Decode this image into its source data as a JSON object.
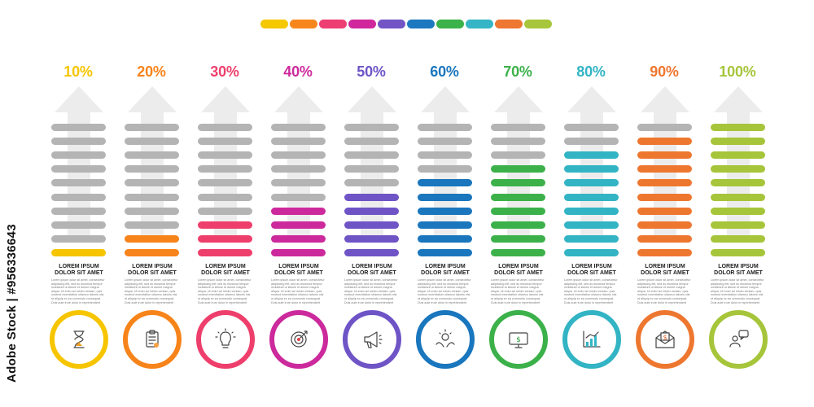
{
  "strip_colors": [
    "#f5c800",
    "#f7861d",
    "#ee3f72",
    "#d0279c",
    "#7254c5",
    "#1c78bf",
    "#3bb24a",
    "#35b5c5",
    "#ee7732",
    "#a8c63c"
  ],
  "columns": [
    {
      "percent": "10%",
      "fraction": 0.1,
      "color": "#f6c500",
      "icon": "hourglass-icon",
      "title": "LOREM IPSUM\nDOLOR SIT AMET",
      "text": "Lorem ipsum dolor sit amet, consectetur adipiscing elit, sed do eiusmod tempor incididunt ut labore et dolore magna aliqua. Ut enim ad minim veniam, quis nostrud exercitation ullamco laboris nisi ut aliquip ex ea commodo consequat. Duis aute irure dolor in reprehenderit"
    },
    {
      "percent": "20%",
      "fraction": 0.2,
      "color": "#f7841a",
      "icon": "clipboard-icon",
      "title": "LOREM IPSUM\nDOLOR SIT AMET",
      "text": "Lorem ipsum dolor sit amet, consectetur adipiscing elit, sed do eiusmod tempor incididunt ut labore et dolore magna aliqua. Ut enim ad minim veniam, quis nostrud exercitation ullamco laboris nisi ut aliquip ex ea commodo consequat. Duis aute irure dolor in reprehenderit"
    },
    {
      "percent": "30%",
      "fraction": 0.3,
      "color": "#ee3f6c",
      "icon": "lightbulb-icon",
      "title": "LOREM IPSUM\nDOLOR SIT AMET",
      "text": "Lorem ipsum dolor sit amet, consectetur adipiscing elit, sed do eiusmod tempor incididunt ut labore et dolore magna aliqua. Ut enim ad minim veniam, quis nostrud exercitation ullamco laboris nisi ut aliquip ex ea commodo consequat. Duis aute irure dolor in reprehenderit"
    },
    {
      "percent": "40%",
      "fraction": 0.4,
      "color": "#cc2a9c",
      "icon": "target-icon",
      "title": "LOREM IPSUM\nDOLOR SIT AMET",
      "text": "Lorem ipsum dolor sit amet, consectetur adipiscing elit, sed do eiusmod tempor incididunt ut labore et dolore magna aliqua. Ut enim ad minim veniam, quis nostrud exercitation ullamco laboris nisi ut aliquip ex ea commodo consequat. Duis aute irure dolor in reprehenderit"
    },
    {
      "percent": "50%",
      "fraction": 0.5,
      "color": "#6f54c6",
      "icon": "megaphone-icon",
      "title": "LOREM IPSUM\nDOLOR SIT AMET",
      "text": "Lorem ipsum dolor sit amet, consectetur adipiscing elit, sed do eiusmod tempor incididunt ut labore et dolore magna aliqua. Ut enim ad minim veniam, quis nostrud exercitation ullamco laboris nisi ut aliquip ex ea commodo consequat. Duis aute irure dolor in reprehenderit"
    },
    {
      "percent": "60%",
      "fraction": 0.6,
      "color": "#1a76bd",
      "icon": "hands-idea-icon",
      "title": "LOREM IPSUM\nDOLOR SIT AMET",
      "text": "Lorem ipsum dolor sit amet, consectetur adipiscing elit, sed do eiusmod tempor incididunt ut labore et dolore magna aliqua. Ut enim ad minim veniam, quis nostrud exercitation ullamco laboris nisi ut aliquip ex ea commodo consequat. Duis aute irure dolor in reprehenderit"
    },
    {
      "percent": "70%",
      "fraction": 0.7,
      "color": "#3cb14a",
      "icon": "monitor-dollar-icon",
      "title": "LOREM IPSUM\nDOLOR SIT AMET",
      "text": "Lorem ipsum dolor sit amet, consectetur adipiscing elit, sed do eiusmod tempor incididunt ut labore et dolore magna aliqua. Ut enim ad minim veniam, quis nostrud exercitation ullamco laboris nisi ut aliquip ex ea commodo consequat. Duis aute irure dolor in reprehenderit"
    },
    {
      "percent": "80%",
      "fraction": 0.8,
      "color": "#33b4c4",
      "icon": "bar-chart-icon",
      "title": "LOREM IPSUM\nDOLOR SIT AMET",
      "text": "Lorem ipsum dolor sit amet, consectetur adipiscing elit, sed do eiusmod tempor incididunt ut labore et dolore magna aliqua. Ut enim ad minim veniam, quis nostrud exercitation ullamco laboris nisi ut aliquip ex ea commodo consequat. Duis aute irure dolor in reprehenderit"
    },
    {
      "percent": "90%",
      "fraction": 0.9,
      "color": "#ee7730",
      "icon": "envelope-dollar-icon",
      "title": "LOREM IPSUM\nDOLOR SIT AMET",
      "text": "Lorem ipsum dolor sit amet, consectetur adipiscing elit, sed do eiusmod tempor incididunt ut labore et dolore magna aliqua. Ut enim ad minim veniam, quis nostrud exercitation ullamco laboris nisi ut aliquip ex ea commodo consequat. Duis aute irure dolor in reprehenderit"
    },
    {
      "percent": "100%",
      "fraction": 1.0,
      "color": "#a6c53a",
      "icon": "chat-user-icon",
      "title": "LOREM IPSUM\nDOLOR SIT AMET",
      "text": "Lorem ipsum dolor sit amet, consectetur adipiscing elit, sed do eiusmod tempor incididunt ut labore et dolore magna aliqua. Ut enim ad minim veniam, quis nostrud exercitation ullamco laboris nisi ut aliquip ex ea commodo consequat. Duis aute irure dolor in reprehenderit"
    }
  ],
  "credit": "Adobe Stock | #956336643"
}
